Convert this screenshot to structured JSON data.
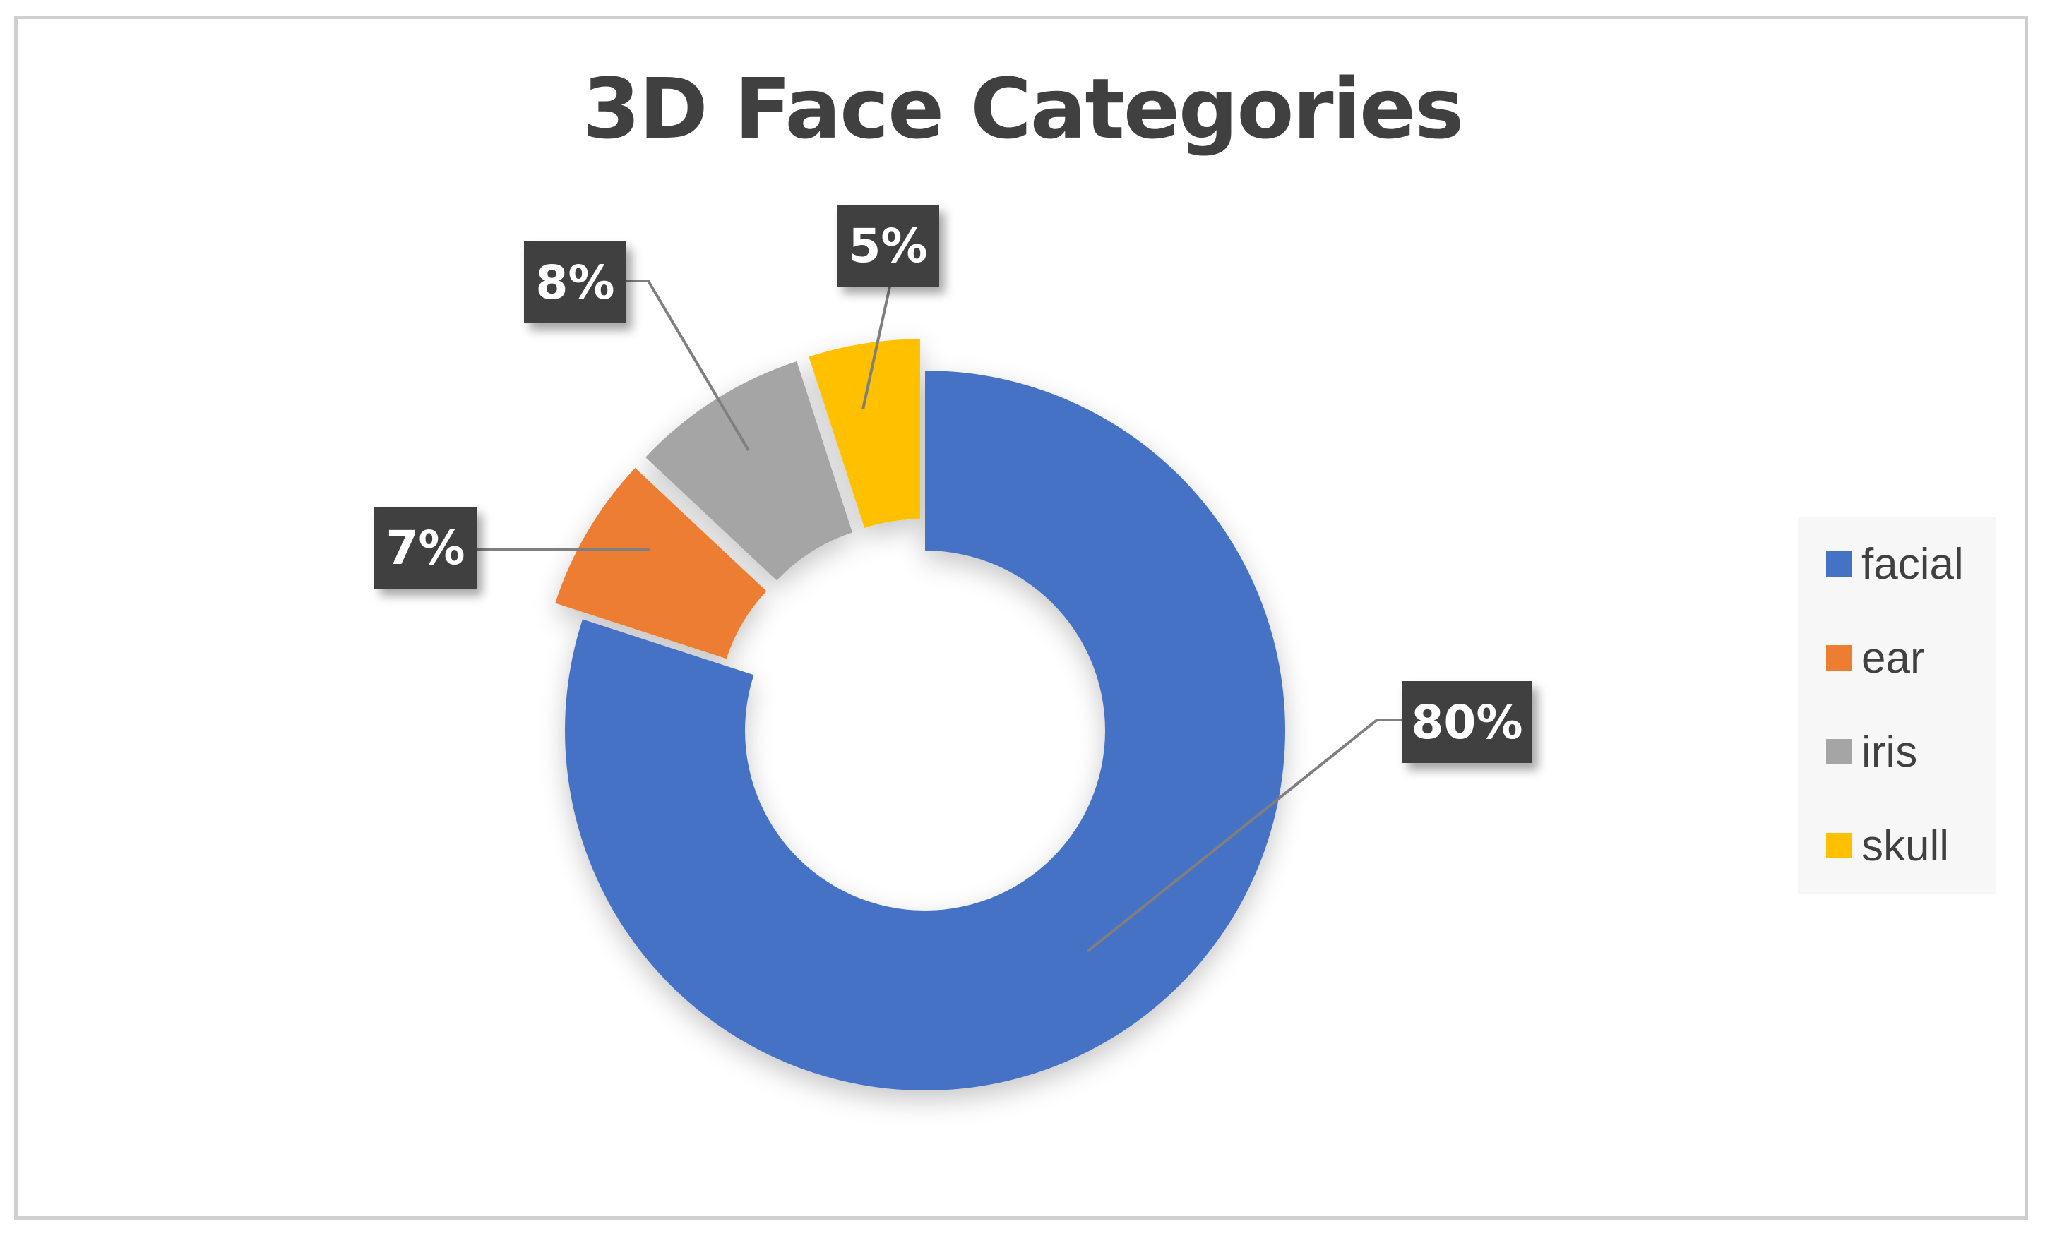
{
  "chart_data": {
    "type": "pie",
    "variant": "donut",
    "title": "3D Face Categories",
    "categories": [
      "facial",
      "ear",
      "iris",
      "skull"
    ],
    "values": [
      80,
      7,
      8,
      5
    ],
    "labels": [
      "80%",
      "7%",
      "8%",
      "5%"
    ],
    "unit": "%",
    "colors": [
      "#4472C4",
      "#ED7D31",
      "#A5A5A5",
      "#FFC000"
    ],
    "exploded": [
      false,
      true,
      true,
      true
    ],
    "legend_position": "right"
  }
}
